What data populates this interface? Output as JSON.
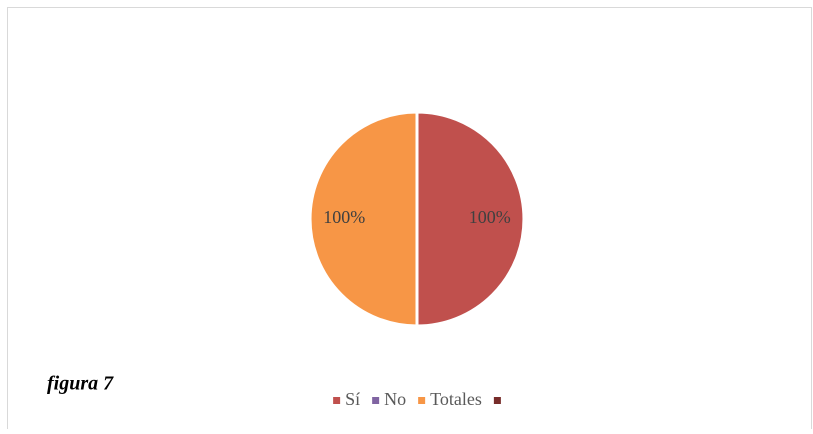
{
  "chart_data": {
    "type": "pie",
    "annotation": "figura 7",
    "categories": [
      "Sí",
      "No",
      "Totales",
      null
    ],
    "values": [
      100,
      0,
      100,
      0
    ],
    "value_labels": [
      "100%",
      null,
      "100%",
      null
    ],
    "colors": [
      "#c0504d",
      "#8064a2",
      "#f79646",
      "#772c2a"
    ],
    "legend": "bottom"
  }
}
